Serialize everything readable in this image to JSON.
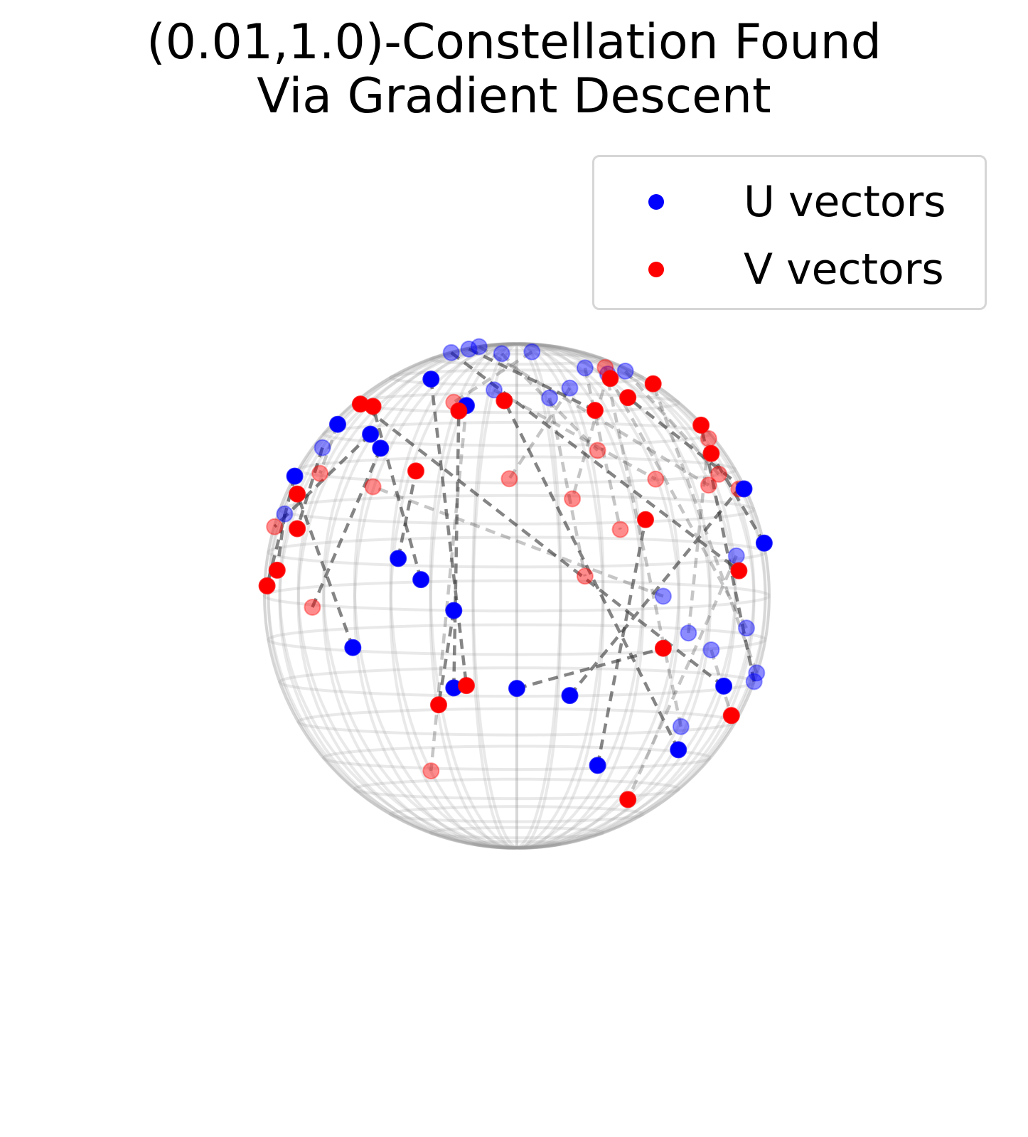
{
  "title_lines": [
    "(0.01,1.0)-Constellation Found",
    "Via Gradient Descent"
  ],
  "legend": {
    "items": [
      {
        "label": "U vectors",
        "color": "#0000ff"
      },
      {
        "label": "V vectors",
        "color": "#ff0000"
      }
    ],
    "placement": "upper-right"
  },
  "chart_data": {
    "type": "scatter",
    "projection": "3d-unit-sphere",
    "title": "(0.01,1.0)-Constellation Found\nVia Gradient Descent",
    "sphere_wireframe": true,
    "axes_visible": false,
    "series": [
      {
        "name": "U vectors",
        "color": "#0000ff",
        "points": [
          [
            0.36,
            -0.68,
            0.84
          ],
          [
            0.21,
            -0.58,
            0.79
          ],
          [
            0.13,
            -0.76,
            0.74
          ],
          [
            0.27,
            -0.41,
            0.88
          ],
          [
            -0.09,
            -0.62,
            0.78
          ],
          [
            0.58,
            -0.81,
            -0.05
          ],
          [
            -0.06,
            -0.35,
            0.94
          ],
          [
            0.06,
            -0.31,
            0.95
          ],
          [
            -0.15,
            -0.15,
            0.98
          ],
          [
            0.43,
            -0.2,
            0.88
          ],
          [
            0.65,
            -0.52,
            -0.55
          ],
          [
            0.68,
            -0.71,
            -0.19
          ],
          [
            0.77,
            -0.59,
            -0.25
          ],
          [
            0.91,
            -0.37,
            -0.15
          ],
          [
            0.95,
            -0.07,
            -0.31
          ],
          [
            0.94,
            0.0,
            -0.34
          ],
          [
            0.98,
            0.01,
            0.21
          ],
          [
            0.9,
            0.09,
            0.43
          ],
          [
            -0.19,
            -0.16,
            0.97
          ],
          [
            0.87,
            -0.48,
            0.13
          ],
          [
            -0.26,
            -0.09,
            0.96
          ],
          [
            0.21,
            0.92,
            -0.34
          ],
          [
            0.64,
            0.51,
            -0.58
          ],
          [
            0.82,
            0.47,
            -0.33
          ],
          [
            0.32,
            0.71,
            -0.63
          ],
          [
            0.0,
            0.95,
            -0.31
          ],
          [
            -0.25,
            0.92,
            -0.31
          ],
          [
            -0.38,
            0.92,
            0.12
          ],
          [
            -0.47,
            0.86,
            0.2
          ],
          [
            -0.25,
            0.97,
            0.0
          ],
          [
            -0.34,
            0.33,
            0.88
          ],
          [
            -0.65,
            0.75,
            -0.16
          ],
          [
            -0.71,
            0.15,
            0.69
          ],
          [
            -0.58,
            0.47,
            0.67
          ],
          [
            -0.77,
            -0.3,
            0.57
          ],
          [
            -0.92,
            -0.25,
            0.31
          ],
          [
            -0.88,
            0.08,
            0.48
          ],
          [
            -0.54,
            0.57,
            0.62
          ],
          [
            -0.2,
            0.58,
            0.79
          ]
        ]
      },
      {
        "name": "V vectors",
        "color": "#ff0000",
        "points": [
          [
            0.22,
            -0.92,
            0.33
          ],
          [
            -0.03,
            -0.91,
            0.41
          ],
          [
            0.27,
            -0.97,
            0.02
          ],
          [
            0.41,
            -0.89,
            0.21
          ],
          [
            0.55,
            -0.72,
            0.42
          ],
          [
            -0.57,
            -0.72,
            0.39
          ],
          [
            0.32,
            -0.79,
            0.53
          ],
          [
            -0.25,
            -0.64,
            0.73
          ],
          [
            0.76,
            -0.49,
            0.41
          ],
          [
            0.8,
            -0.38,
            0.46
          ],
          [
            0.35,
            -0.28,
            0.89
          ],
          [
            0.76,
            -0.23,
            0.61
          ],
          [
            0.85,
            0.25,
            -0.46
          ],
          [
            0.37,
            0.29,
            0.88
          ],
          [
            0.54,
            -0.03,
            0.84
          ],
          [
            0.73,
            0.04,
            0.68
          ],
          [
            0.77,
            0.25,
            0.58
          ],
          [
            0.44,
            0.38,
            0.81
          ],
          [
            0.31,
            0.56,
            0.77
          ],
          [
            0.44,
            0.47,
            -0.78
          ],
          [
            0.88,
            0.5,
            0.13
          ],
          [
            0.88,
            -0.24,
            0.41
          ],
          [
            -0.05,
            0.59,
            0.81
          ],
          [
            -0.62,
            0.15,
            0.77
          ],
          [
            0.51,
            0.79,
            0.35
          ],
          [
            0.58,
            0.8,
            -0.16
          ],
          [
            -0.23,
            0.6,
            0.77
          ],
          [
            -0.57,
            0.3,
            0.77
          ],
          [
            -0.4,
            0.74,
            0.54
          ],
          [
            -0.31,
            0.87,
            -0.38
          ],
          [
            -0.2,
            0.93,
            -0.3
          ],
          [
            -0.87,
            0.26,
            0.42
          ],
          [
            -0.78,
            -0.43,
            0.46
          ],
          [
            -0.96,
            -0.07,
            0.27
          ],
          [
            -0.87,
            0.39,
            0.29
          ],
          [
            -0.95,
            0.3,
            0.12
          ],
          [
            -0.99,
            0.17,
            0.05
          ],
          [
            -0.81,
            -0.58,
            -0.08
          ],
          [
            -0.34,
            -0.59,
            -0.73
          ]
        ]
      }
    ]
  }
}
